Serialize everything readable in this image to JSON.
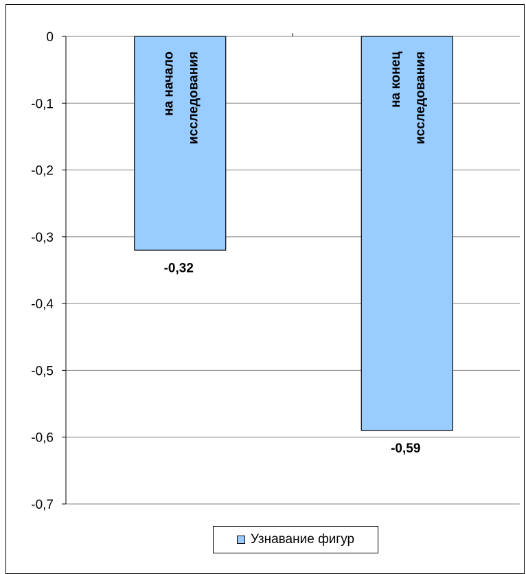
{
  "chart_data": {
    "type": "bar",
    "categories": [
      "на начало исследования",
      "на конец исследования"
    ],
    "category_label_lines": [
      [
        "на начало",
        "исследования"
      ],
      [
        "на конец",
        "исследования"
      ]
    ],
    "series": [
      {
        "name": "Узнавание фигур",
        "values": [
          -0.32,
          -0.59
        ],
        "color": "#99ccff"
      }
    ],
    "data_labels": [
      "-0,32",
      "-0,59"
    ],
    "y_ticks": [
      "0",
      "-0,1",
      "-0,2",
      "-0,3",
      "-0,4",
      "-0,5",
      "-0,6",
      "-0,7"
    ],
    "ylim": [
      -0.7,
      0
    ],
    "grid": true,
    "legend_position": "bottom",
    "title": "",
    "xlabel": "",
    "ylabel": ""
  },
  "legend": {
    "label": "Узнавание фигур"
  }
}
